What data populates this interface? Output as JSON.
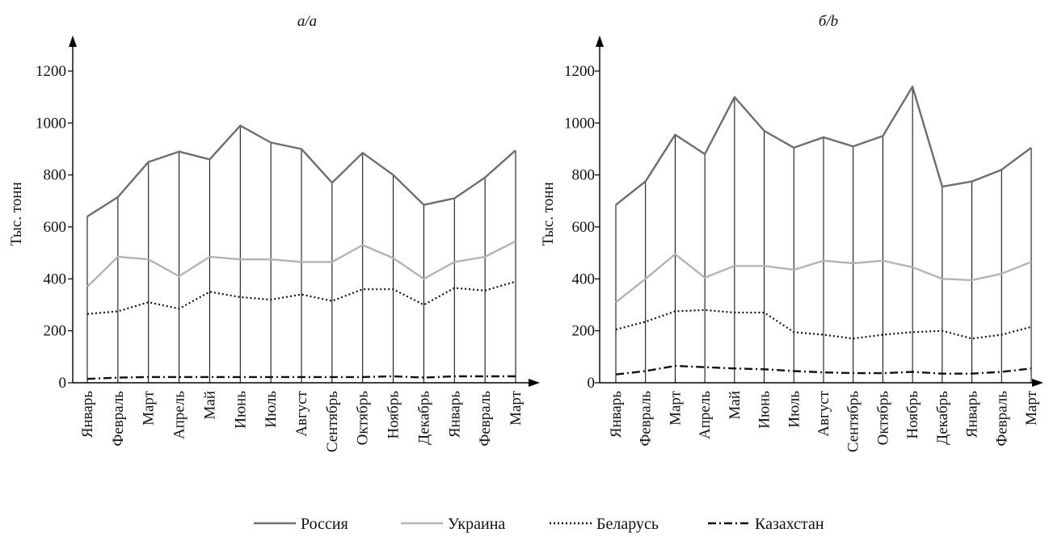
{
  "chart_data": [
    {
      "type": "line",
      "title": "а/a",
      "ylabel": "Тыс. тонн",
      "xlabel": "",
      "ylim": [
        0,
        1200
      ],
      "yticks": [
        0,
        200,
        400,
        600,
        800,
        1000,
        1200
      ],
      "categories": [
        "Январь",
        "Февраль",
        "Март",
        "Апрель",
        "Май",
        "Июнь",
        "Июль",
        "Август",
        "Сентябрь",
        "Октябрь",
        "Ноябрь",
        "Декабрь",
        "Январь",
        "Февраль",
        "Март"
      ],
      "grid": "vertical lines at each month",
      "series": [
        {
          "name": "Россия",
          "color": "#6e6e6e",
          "style": "solid",
          "values": [
            640,
            715,
            850,
            890,
            860,
            990,
            925,
            900,
            770,
            885,
            800,
            685,
            710,
            790,
            895
          ]
        },
        {
          "name": "Украина",
          "color": "#b4b4b4",
          "style": "solid",
          "values": [
            370,
            485,
            475,
            410,
            485,
            475,
            475,
            465,
            465,
            530,
            480,
            400,
            465,
            485,
            545
          ]
        },
        {
          "name": "Беларусь",
          "color": "#111111",
          "style": "dotted",
          "values": [
            265,
            275,
            310,
            285,
            350,
            330,
            320,
            340,
            315,
            360,
            360,
            300,
            365,
            355,
            390
          ]
        },
        {
          "name": "Казахстан",
          "color": "#111111",
          "style": "dashdot",
          "values": [
            15,
            20,
            22,
            22,
            22,
            22,
            22,
            22,
            22,
            22,
            25,
            20,
            25,
            25,
            25
          ]
        }
      ]
    },
    {
      "type": "line",
      "title": "б/b",
      "ylabel": "Тыс. тонн",
      "xlabel": "",
      "ylim": [
        0,
        1200
      ],
      "yticks": [
        0,
        200,
        400,
        600,
        800,
        1000,
        1200
      ],
      "categories": [
        "Январь",
        "Февраль",
        "Март",
        "Апрель",
        "Май",
        "Июнь",
        "Июль",
        "Август",
        "Сентябрь",
        "Октябрь",
        "Ноябрь",
        "Декабрь",
        "Январь",
        "Февраль",
        "Март"
      ],
      "grid": "vertical lines at each month",
      "series": [
        {
          "name": "Россия",
          "color": "#6e6e6e",
          "style": "solid",
          "values": [
            685,
            775,
            955,
            880,
            1100,
            970,
            905,
            945,
            910,
            950,
            1140,
            755,
            775,
            820,
            905
          ]
        },
        {
          "name": "Украина",
          "color": "#b4b4b4",
          "style": "solid",
          "values": [
            310,
            400,
            495,
            405,
            450,
            450,
            435,
            470,
            460,
            470,
            445,
            400,
            395,
            420,
            465
          ]
        },
        {
          "name": "Беларусь",
          "color": "#111111",
          "style": "dotted",
          "values": [
            205,
            235,
            275,
            280,
            270,
            270,
            195,
            185,
            170,
            185,
            195,
            200,
            170,
            185,
            215
          ]
        },
        {
          "name": "Казахстан",
          "color": "#111111",
          "style": "dashdot",
          "values": [
            32,
            45,
            65,
            60,
            55,
            52,
            45,
            40,
            37,
            37,
            42,
            35,
            35,
            42,
            55
          ]
        }
      ]
    }
  ],
  "legend": {
    "placement": "bottom-center",
    "items": [
      {
        "label": "Россия",
        "color": "#6e6e6e",
        "style": "solid"
      },
      {
        "label": "Украина",
        "color": "#b4b4b4",
        "style": "solid"
      },
      {
        "label": "Беларусь",
        "color": "#111111",
        "style": "dotted"
      },
      {
        "label": "Казахстан",
        "color": "#111111",
        "style": "dashdot"
      }
    ]
  }
}
